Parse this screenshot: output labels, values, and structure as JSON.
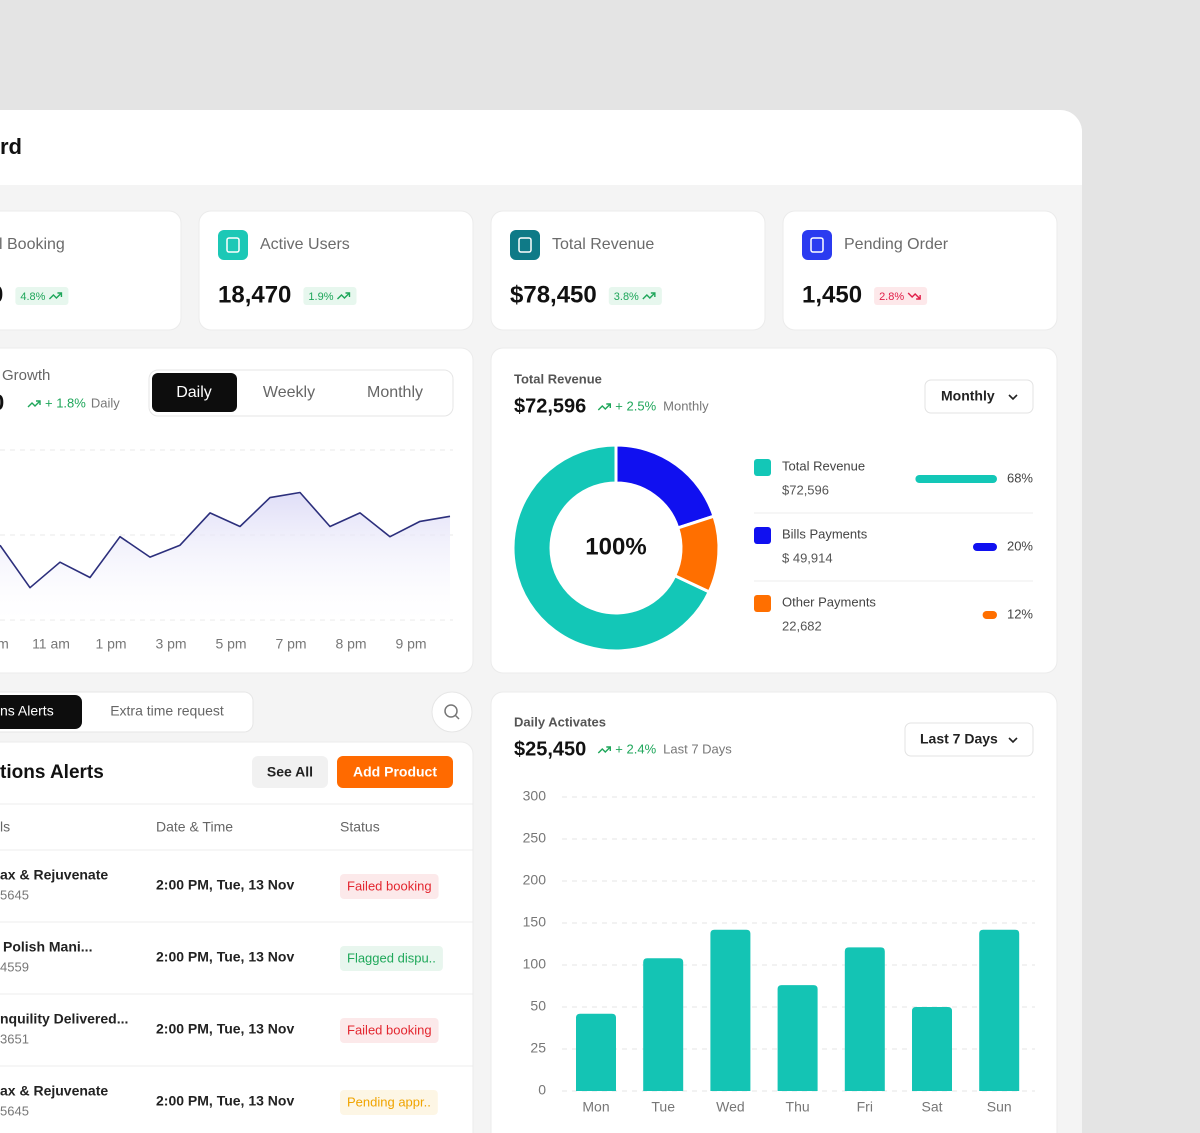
{
  "header": {
    "title": "rd"
  },
  "stats": [
    {
      "label": "l Booking",
      "value": "0",
      "change": "4.8%",
      "trend": "up"
    },
    {
      "label": "Active Users",
      "value": "18,470",
      "change": "1.9%",
      "trend": "up",
      "icon_color": "#1cc8b6"
    },
    {
      "label": "Total Revenue",
      "value": "$78,450",
      "change": "3.8%",
      "trend": "up",
      "icon_color": "#0f7a87"
    },
    {
      "label": "Pending Order",
      "value": "1,450",
      "change": "2.8%",
      "trend": "down",
      "icon_color": "#2b3bf0"
    }
  ],
  "chart_data": [
    {
      "type": "line",
      "title": "Growth",
      "value": "0",
      "change": "+ 1.8%",
      "period": "Daily",
      "tabs": [
        "Daily",
        "Weekly",
        "Monthly"
      ],
      "selected_tab": "Daily",
      "x": [
        0,
        1,
        2,
        3,
        4,
        5,
        6,
        7,
        8,
        9,
        10,
        11,
        12,
        13,
        14,
        15
      ],
      "values": [
        44,
        19,
        34,
        25,
        49,
        37,
        44,
        63,
        55,
        72,
        75,
        55,
        63,
        49,
        58,
        61
      ],
      "xlim": [
        0,
        15
      ],
      "ylim": [
        0,
        100
      ],
      "xticks": [
        {
          "value": 0.1,
          "label": "m"
        },
        {
          "value": 1.7,
          "label": "11 am"
        },
        {
          "value": 3.7,
          "label": "1 pm"
        },
        {
          "value": 5.7,
          "label": "3 pm"
        },
        {
          "value": 7.7,
          "label": "5 pm"
        },
        {
          "value": 9.7,
          "label": "7 pm"
        },
        {
          "value": 11.7,
          "label": "8 pm"
        },
        {
          "value": 13.7,
          "label": "9 pm"
        }
      ],
      "color": "#2c2f7c",
      "fill": "#dcdaf6"
    },
    {
      "type": "pie",
      "donut": true,
      "title": "Total Revenue",
      "value": "$72,596",
      "change": "+ 2.5%",
      "period": "Monthly",
      "dropdown": "Monthly",
      "center_label": "100%",
      "categories": [
        "Total Revenue",
        "Bills Payments",
        "Other Payments"
      ],
      "amounts": [
        "$72,596",
        "$ 49,914",
        "22,682"
      ],
      "values": [
        68,
        20,
        12
      ],
      "value_labels": [
        "68%",
        "20%",
        "12%"
      ],
      "colors": [
        "#13c7b7",
        "#1010f0",
        "#ff6f00"
      ]
    },
    {
      "type": "bar",
      "title": "Daily Activates",
      "value": "$25,450",
      "change": "+ 2.4%",
      "period": "Last 7 Days",
      "dropdown": "Last 7 Days",
      "categories": [
        "Mon",
        "Tue",
        "Wed",
        "Thu",
        "Fri",
        "Sat",
        "Sun"
      ],
      "values": [
        46,
        108,
        142,
        76,
        121,
        50,
        142
      ],
      "ylim": [
        0,
        300
      ],
      "yticks": [
        0,
        25,
        50,
        100,
        150,
        200,
        250,
        300
      ],
      "grid": true,
      "color": "#14c4b4"
    }
  ],
  "alerts": {
    "tabs": [
      "ns Alerts",
      "Extra time request"
    ],
    "title": "tions Alerts",
    "buttons": [
      "See All",
      "Add Product"
    ],
    "columns": [
      "ls",
      "Date & Time",
      "Status"
    ],
    "rows": [
      {
        "name": "ax & Rejuvenate",
        "id": "5645",
        "date": "2:00 PM, Tue, 13 Nov",
        "status": "Failed booking",
        "status_color": "#e3262f"
      },
      {
        "name": "Polish Mani...",
        "id": "4559",
        "date": "2:00 PM, Tue, 13 Nov",
        "status": "Flagged dispu..",
        "status_color": "#1fa85a"
      },
      {
        "name": "nquility Delivered...",
        "id": "3651",
        "date": "2:00 PM, Tue, 13 Nov",
        "status": "Failed booking",
        "status_color": "#e3262f"
      },
      {
        "name": "ax & Rejuvenate",
        "id": "5645",
        "date": "2:00 PM, Tue, 13 Nov",
        "status": "Pending appr..",
        "status_color": "#f0a400"
      }
    ]
  }
}
